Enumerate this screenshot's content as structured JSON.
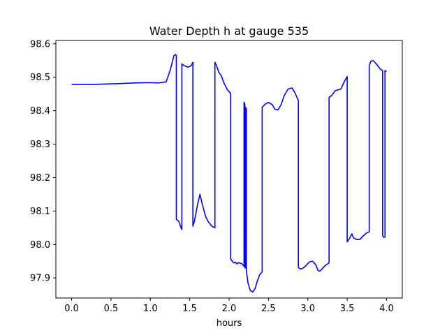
{
  "chart_data": {
    "type": "line",
    "title": "Water Depth h at gauge 535",
    "xlabel": "hours",
    "ylabel": "",
    "xlim": [
      -0.2,
      4.2
    ],
    "ylim": [
      97.84,
      98.61
    ],
    "xticks": [
      0.0,
      0.5,
      1.0,
      1.5,
      2.0,
      2.5,
      3.0,
      3.5,
      4.0
    ],
    "xtick_labels": [
      "0.0",
      "0.5",
      "1.0",
      "1.5",
      "2.0",
      "2.5",
      "3.0",
      "3.5",
      "4.0"
    ],
    "yticks": [
      97.9,
      98.0,
      98.1,
      98.2,
      98.3,
      98.4,
      98.5,
      98.6
    ],
    "ytick_labels": [
      "97.9",
      "98.0",
      "98.1",
      "98.2",
      "98.3",
      "98.4",
      "98.5",
      "98.6"
    ],
    "grid": false,
    "series": [
      {
        "color": "#0000ff",
        "x": [
          0.0,
          0.3,
          0.6,
          0.8,
          1.0,
          1.1,
          1.2,
          1.25,
          1.3,
          1.32,
          1.33,
          1.33,
          1.36,
          1.39,
          1.4,
          1.4,
          1.42,
          1.48,
          1.52,
          1.54,
          1.54,
          1.56,
          1.6,
          1.63,
          1.66,
          1.7,
          1.73,
          1.78,
          1.82,
          1.82,
          1.84,
          1.87,
          1.9,
          1.94,
          1.98,
          2.02,
          2.02,
          2.04,
          2.06,
          2.08,
          2.1,
          2.12,
          2.14,
          2.16,
          2.19,
          2.19,
          2.2,
          2.2,
          2.21,
          2.21,
          2.22,
          2.22,
          2.24,
          2.27,
          2.3,
          2.33,
          2.36,
          2.39,
          2.42,
          2.42,
          2.46,
          2.5,
          2.55,
          2.58,
          2.62,
          2.66,
          2.7,
          2.75,
          2.8,
          2.84,
          2.88,
          2.88,
          2.9,
          2.93,
          2.96,
          2.98,
          3.02,
          3.06,
          3.1,
          3.13,
          3.15,
          3.18,
          3.22,
          3.27,
          3.27,
          3.3,
          3.35,
          3.42,
          3.47,
          3.5,
          3.5,
          3.53,
          3.56,
          3.58,
          3.62,
          3.66,
          3.7,
          3.75,
          3.78,
          3.78,
          3.8,
          3.83,
          3.87,
          3.92,
          3.95,
          3.95,
          3.96,
          3.98,
          3.98,
          4.0
        ],
        "y": [
          98.479,
          98.479,
          98.481,
          98.483,
          98.484,
          98.483,
          98.486,
          98.52,
          98.565,
          98.568,
          98.565,
          98.075,
          98.07,
          98.05,
          98.045,
          98.54,
          98.536,
          98.53,
          98.535,
          98.545,
          98.055,
          98.07,
          98.12,
          98.15,
          98.12,
          98.085,
          98.07,
          98.055,
          98.05,
          98.545,
          98.535,
          98.515,
          98.505,
          98.48,
          98.462,
          98.452,
          97.957,
          97.95,
          97.945,
          97.947,
          97.942,
          97.946,
          97.944,
          97.943,
          97.935,
          98.425,
          98.42,
          97.93,
          97.93,
          98.41,
          98.405,
          97.92,
          97.885,
          97.862,
          97.858,
          97.868,
          97.892,
          97.91,
          97.918,
          98.41,
          98.42,
          98.425,
          98.418,
          98.405,
          98.402,
          98.418,
          98.445,
          98.465,
          98.468,
          98.452,
          98.43,
          97.932,
          97.927,
          97.928,
          97.933,
          97.938,
          97.948,
          97.95,
          97.94,
          97.922,
          97.92,
          97.927,
          97.937,
          97.945,
          98.44,
          98.445,
          98.46,
          98.465,
          98.49,
          98.502,
          98.008,
          98.018,
          98.032,
          98.02,
          98.015,
          98.015,
          98.025,
          98.035,
          98.038,
          98.535,
          98.548,
          98.55,
          98.54,
          98.525,
          98.52,
          98.028,
          98.022,
          98.022,
          98.52,
          98.518
        ]
      }
    ]
  }
}
